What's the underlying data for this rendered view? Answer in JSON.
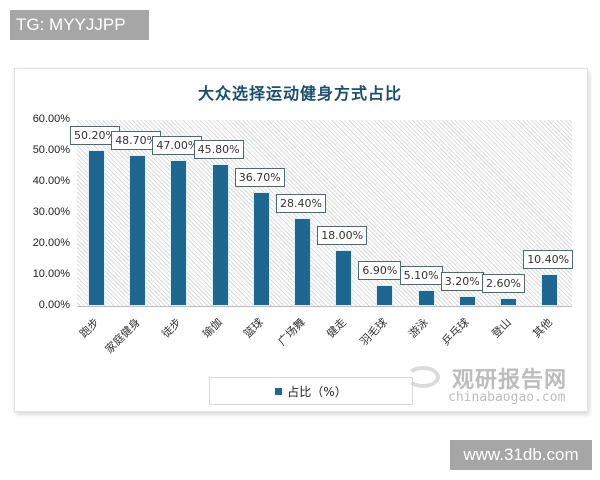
{
  "overlays": {
    "top_left_badge": "TG: MYYJJPP",
    "bottom_right_badge": "www.31db.com"
  },
  "watermark": {
    "name_cn": "观研报告网",
    "url": "chinabaogao.com"
  },
  "legend": {
    "label": "占比（%）"
  },
  "colors": {
    "bar": "#1d6791",
    "title": "#1b4f6e"
  },
  "chart_data": {
    "type": "bar",
    "title": "大众选择运动健身方式占比",
    "xlabel": "",
    "ylabel": "",
    "ylim": [
      0,
      60
    ],
    "yticks": [
      "0.00%",
      "10.00%",
      "20.00%",
      "30.00%",
      "40.00%",
      "50.00%",
      "60.00%"
    ],
    "grid": false,
    "legend_position": "bottom",
    "categories": [
      "跑步",
      "家庭健身",
      "徒步",
      "瑜伽",
      "篮球",
      "广场舞",
      "健走",
      "羽毛球",
      "游泳",
      "乒乓球",
      "登山",
      "其他"
    ],
    "series": [
      {
        "name": "占比（%）",
        "values": [
          50.2,
          48.7,
          47.0,
          45.8,
          36.7,
          28.4,
          18.0,
          6.9,
          5.1,
          3.2,
          2.6,
          10.4
        ],
        "labels": [
          "50.20%",
          "48.70%",
          "47.00%",
          "45.80%",
          "36.70%",
          "28.40%",
          "18.00%",
          "6.90%",
          "5.10%",
          "3.20%",
          "2.60%",
          "10.40%"
        ]
      }
    ]
  }
}
